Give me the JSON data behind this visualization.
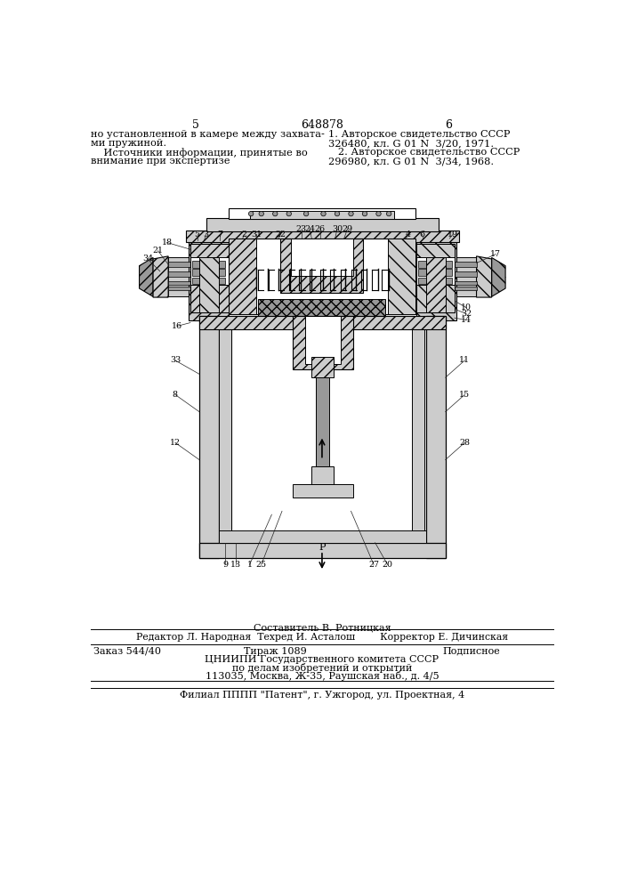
{
  "page_number_left": "5",
  "page_number_center": "648878",
  "page_number_right": "6",
  "top_left_text": [
    "но установленной в камере между захвата-",
    "ми пружиной.",
    "    Источники информации, принятые во",
    "внимание при экспертизе"
  ],
  "top_right_text": [
    "1. Авторское свидетельство СССР",
    "326480, кл. G 01 N  3/20, 1971.",
    "   2. Авторское свидетельство СССР",
    "296980, кл. G 01 N  3/34, 1968."
  ],
  "footer_line1": "Составитель В. Ротницкая",
  "footer_line2": "Редактор Л. Народная  Техред И. Асталош        Корректор Е. Дичинская",
  "footer_line3_col1": "Заказ 544/40",
  "footer_line3_col2": "Тираж 1089",
  "footer_line3_col3": "Подписное",
  "footer_line4": "ЦНИИПИ Государственного комитета СССР",
  "footer_line5": "по делам изобретений и открытий",
  "footer_line6": "113035, Москва, Ж-35, Раушская наб., д. 4/5",
  "footer_line7": "Филиал ПППП \"Патент\", г. Ужгород, ул. Проектная, 4",
  "bg_color": "#ffffff",
  "text_color": "#000000"
}
